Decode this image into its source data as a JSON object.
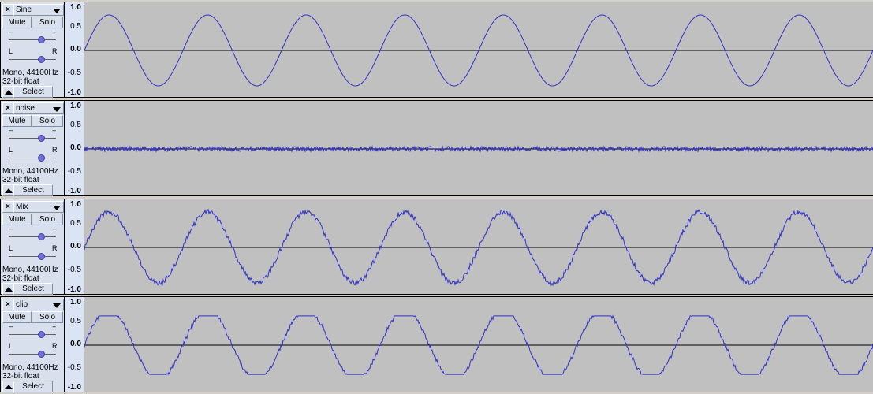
{
  "colors": {
    "waveform": "#3232c8",
    "background": "#c0c0c0",
    "panel": "#d8e0ee"
  },
  "common": {
    "mute": "Mute",
    "solo": "Solo",
    "select": "Select",
    "gain_minus": "–",
    "gain_plus": "+",
    "pan_left": "L",
    "pan_right": "R",
    "close_icon": "×"
  },
  "ruler_ticks": [
    "1.0",
    "0.5",
    "0.0",
    "-0.5",
    "-1.0"
  ],
  "tracks": [
    {
      "name": "Sine",
      "rate": "Mono, 44100Hz",
      "format": "32-bit float",
      "waveform": "sine",
      "amplitude": 0.85,
      "cycles": 8
    },
    {
      "name": "noise",
      "rate": "Mono, 44100Hz",
      "format": "32-bit float",
      "waveform": "noise",
      "amplitude": 0.06,
      "cycles": 0
    },
    {
      "name": "Mix",
      "rate": "Mono, 44100Hz",
      "format": "32-bit float",
      "waveform": "sine+noise",
      "amplitude": 0.85,
      "cycles": 8
    },
    {
      "name": "clip",
      "rate": "Mono, 44100Hz",
      "format": "32-bit float",
      "waveform": "clipped",
      "amplitude": 0.85,
      "clip": 0.7,
      "cycles": 8
    }
  ]
}
